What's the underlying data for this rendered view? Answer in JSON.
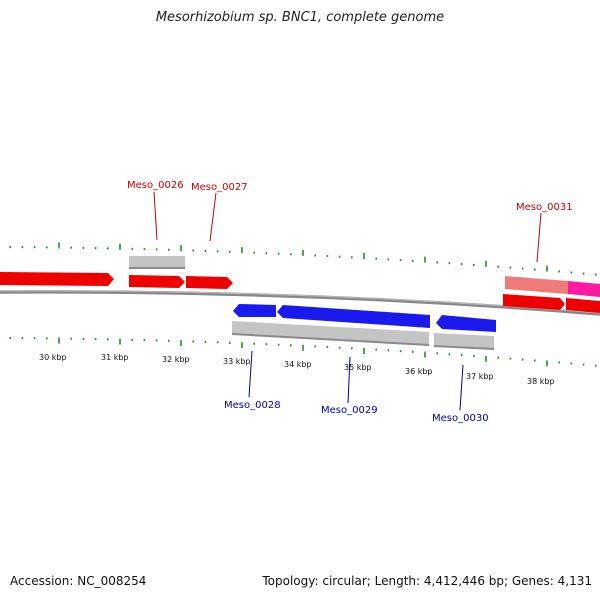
{
  "title": "Mesorhizobium sp. BNC1, complete genome",
  "footer": {
    "accession": "Accession: NC_008254",
    "topology": "Topology: circular; Length: 4,412,446 bp; Genes: 4,131"
  },
  "colors": {
    "forward_gene": "#ee0000",
    "reverse_gene": "#0000ee",
    "forward_label": "#cc0000",
    "reverse_label": "#0000aa",
    "tick": "#2a8a2a",
    "backbone": "#888888",
    "gray_feature": "#c4c4c4",
    "pink_feature": "#ee7a7a",
    "magenta_feature": "#ff1aa3"
  },
  "kbp_labels": [
    "30 kbp",
    "31 kbp",
    "32 kbp",
    "33 kbp",
    "34 kbp",
    "35 kbp",
    "36 kbp",
    "37 kbp",
    "38 kbp"
  ],
  "gene_labels": {
    "forward": [
      "Meso_0026",
      "Meso_0027",
      "Meso_0031"
    ],
    "reverse": [
      "Meso_0028",
      "Meso_0029",
      "Meso_0030"
    ]
  }
}
